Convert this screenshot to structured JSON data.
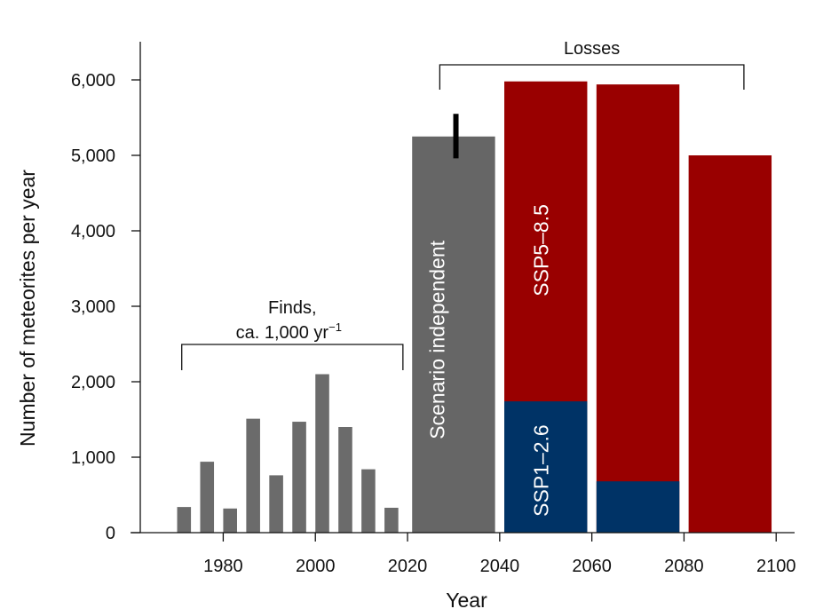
{
  "chart_data": {
    "type": "bar",
    "xlabel": "Year",
    "ylabel": "Number of meteorites per year",
    "xlim": [
      1962,
      2104
    ],
    "ylim": [
      0,
      6000
    ],
    "x_ticks": [
      {
        "value": 1980,
        "label": "1980"
      },
      {
        "value": 2000,
        "label": "2000"
      },
      {
        "value": 2020,
        "label": "2020"
      },
      {
        "value": 2040,
        "label": "2040"
      },
      {
        "value": 2060,
        "label": "2060"
      },
      {
        "value": 2080,
        "label": "2080"
      },
      {
        "value": 2100,
        "label": "2100"
      }
    ],
    "y_ticks": [
      {
        "value": 0,
        "label": "0"
      },
      {
        "value": 1000,
        "label": "1,000"
      },
      {
        "value": 2000,
        "label": "2,000"
      },
      {
        "value": 3000,
        "label": "3,000"
      },
      {
        "value": 4000,
        "label": "4,000"
      },
      {
        "value": 5000,
        "label": "5,000"
      },
      {
        "value": 6000,
        "label": "6,000"
      }
    ],
    "finds": {
      "annotation_line1": "Finds,",
      "annotation_line2": "ca. 1,000 yr",
      "annotation_sup": "−1",
      "bracket_range": [
        1971,
        2019
      ],
      "color": "#6b6b6b",
      "x": [
        1971.5,
        1976.5,
        1981.5,
        1986.5,
        1991.5,
        1996.5,
        2001.5,
        2006.5,
        2011.5,
        2016.5
      ],
      "values": [
        340,
        940,
        320,
        1510,
        760,
        1470,
        2100,
        1400,
        840,
        330
      ]
    },
    "losses": {
      "annotation": "Losses",
      "bracket_range": [
        2027,
        2093
      ],
      "bars": [
        {
          "x_start": 2021,
          "x_end": 2039,
          "value": 5250,
          "color": "#666666",
          "label": "Scenario independent",
          "error": [
            4960,
            5550
          ]
        },
        {
          "x_start": 2041,
          "x_end": 2059,
          "ssp585": 5980,
          "ssp126": 1740,
          "label_ssp585": "SSP5–8.5",
          "label_ssp126": "SSP1–2.6"
        },
        {
          "x_start": 2061,
          "x_end": 2079,
          "ssp585": 5940,
          "ssp126": 680
        },
        {
          "x_start": 2081,
          "x_end": 2099,
          "ssp585": 5000,
          "ssp126": 0
        }
      ],
      "ssp585_color": "#990000",
      "ssp126_color": "#003366"
    }
  }
}
